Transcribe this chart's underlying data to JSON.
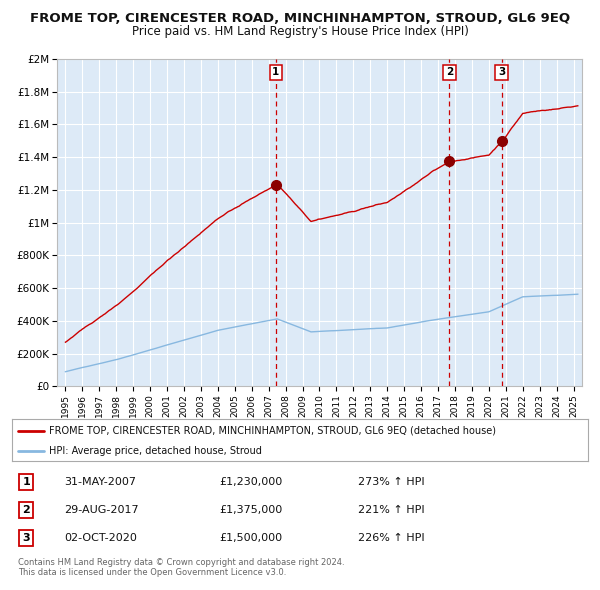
{
  "title": "FROME TOP, CIRENCESTER ROAD, MINCHINHAMPTON, STROUD, GL6 9EQ",
  "subtitle": "Price paid vs. HM Land Registry's House Price Index (HPI)",
  "title_fontsize": 9.5,
  "subtitle_fontsize": 8.5,
  "background_color": "#ffffff",
  "plot_bg_color": "#ddeaf7",
  "grid_color": "#ffffff",
  "red_line_color": "#cc0000",
  "blue_line_color": "#88b8e0",
  "sale_marker_color": "#8b0000",
  "dashed_line_color": "#cc0000",
  "legend_border_color": "#aaaaaa",
  "table_border_color": "#cc0000",
  "sales": [
    {
      "num": 1,
      "date_str": "31-MAY-2007",
      "price": 1230000,
      "pct": "273%",
      "date_x": 2007.42
    },
    {
      "num": 2,
      "date_str": "29-AUG-2017",
      "price": 1375000,
      "pct": "221%",
      "date_x": 2017.67
    },
    {
      "num": 3,
      "date_str": "02-OCT-2020",
      "price": 1500000,
      "pct": "226%",
      "date_x": 2020.75
    }
  ],
  "xlim": [
    1994.5,
    2025.5
  ],
  "ylim": [
    0,
    2000000
  ],
  "yticks": [
    0,
    200000,
    400000,
    600000,
    800000,
    1000000,
    1200000,
    1400000,
    1600000,
    1800000,
    2000000
  ],
  "ytick_labels": [
    "£0",
    "£200K",
    "£400K",
    "£600K",
    "£800K",
    "£1M",
    "£1.2M",
    "£1.4M",
    "£1.6M",
    "£1.8M",
    "£2M"
  ],
  "xtick_years": [
    1995,
    1996,
    1997,
    1998,
    1999,
    2000,
    2001,
    2002,
    2003,
    2004,
    2005,
    2006,
    2007,
    2008,
    2009,
    2010,
    2011,
    2012,
    2013,
    2014,
    2015,
    2016,
    2017,
    2018,
    2019,
    2020,
    2021,
    2022,
    2023,
    2024,
    2025
  ],
  "footer_line1": "Contains HM Land Registry data © Crown copyright and database right 2024.",
  "footer_line2": "This data is licensed under the Open Government Licence v3.0.",
  "legend_entry1": "FROME TOP, CIRENCESTER ROAD, MINCHINHAMPTON, STROUD, GL6 9EQ (detached house)",
  "legend_entry2": "HPI: Average price, detached house, Stroud"
}
